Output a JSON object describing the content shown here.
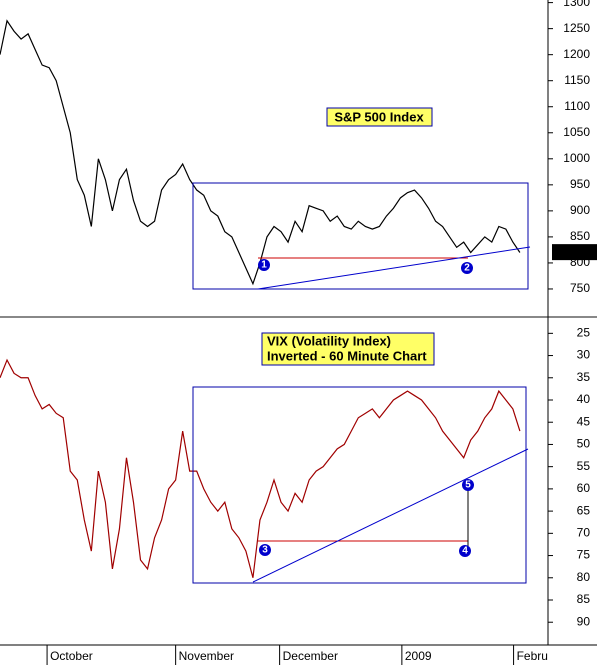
{
  "chart_data": [
    {
      "type": "line",
      "title": "S&P 500 Index",
      "color": "#000000",
      "values": [
        1200,
        1265,
        1245,
        1230,
        1240,
        1210,
        1180,
        1175,
        1150,
        1100,
        1050,
        960,
        930,
        870,
        1000,
        960,
        900,
        960,
        980,
        920,
        880,
        870,
        880,
        940,
        960,
        970,
        990,
        960,
        940,
        930,
        900,
        890,
        860,
        850,
        820,
        790,
        760,
        800,
        850,
        870,
        860,
        840,
        880,
        860,
        910,
        905,
        900,
        880,
        890,
        870,
        865,
        880,
        870,
        865,
        870,
        890,
        905,
        925,
        935,
        940,
        925,
        905,
        880,
        870,
        850,
        830,
        840,
        820,
        835,
        850,
        840,
        870,
        865,
        840,
        820
      ],
      "xlim": [
        0,
        78
      ],
      "ylim": [
        700,
        1305
      ],
      "yticks": [
        750,
        800,
        850,
        900,
        950,
        1000,
        1050,
        1100,
        1150,
        1200,
        1250,
        1300
      ],
      "last_price": {
        "value": 820.75,
        "label": "820.750"
      },
      "markers": [
        "1",
        "2"
      ]
    },
    {
      "type": "line",
      "title": "VIX (Volatility Index)",
      "subtitle": "Inverted - 60 Minute Chart",
      "color": "#a00000",
      "values": [
        35,
        31,
        34,
        35,
        35,
        39,
        42,
        41,
        43,
        44,
        56,
        58,
        67,
        74,
        56,
        63,
        78,
        69,
        53,
        63,
        76,
        78,
        71,
        67,
        60,
        58,
        47,
        56,
        56,
        60,
        63,
        65,
        63,
        69,
        71,
        74,
        80,
        67,
        63,
        58,
        63,
        65,
        61,
        63,
        58,
        56,
        55,
        53,
        51,
        50,
        47,
        44,
        43,
        42,
        44,
        42,
        40,
        39,
        38,
        39,
        40,
        42,
        44,
        47,
        49,
        51,
        53,
        49,
        47,
        44,
        42,
        38,
        40,
        42,
        47
      ],
      "xlim": [
        0,
        78
      ],
      "ylim": [
        22,
        94
      ],
      "inverted": true,
      "yticks": [
        25,
        30,
        35,
        40,
        45,
        50,
        55,
        60,
        65,
        70,
        75,
        80,
        85,
        90
      ],
      "xticks": [
        {
          "value": 6.7,
          "label": "October"
        },
        {
          "value": 25,
          "label": "November"
        },
        {
          "value": 39.8,
          "label": "December"
        },
        {
          "value": 57.2,
          "label": "2009"
        },
        {
          "value": 73.1,
          "label": "Febru"
        }
      ],
      "markers": [
        "3",
        "4",
        "5"
      ]
    }
  ]
}
